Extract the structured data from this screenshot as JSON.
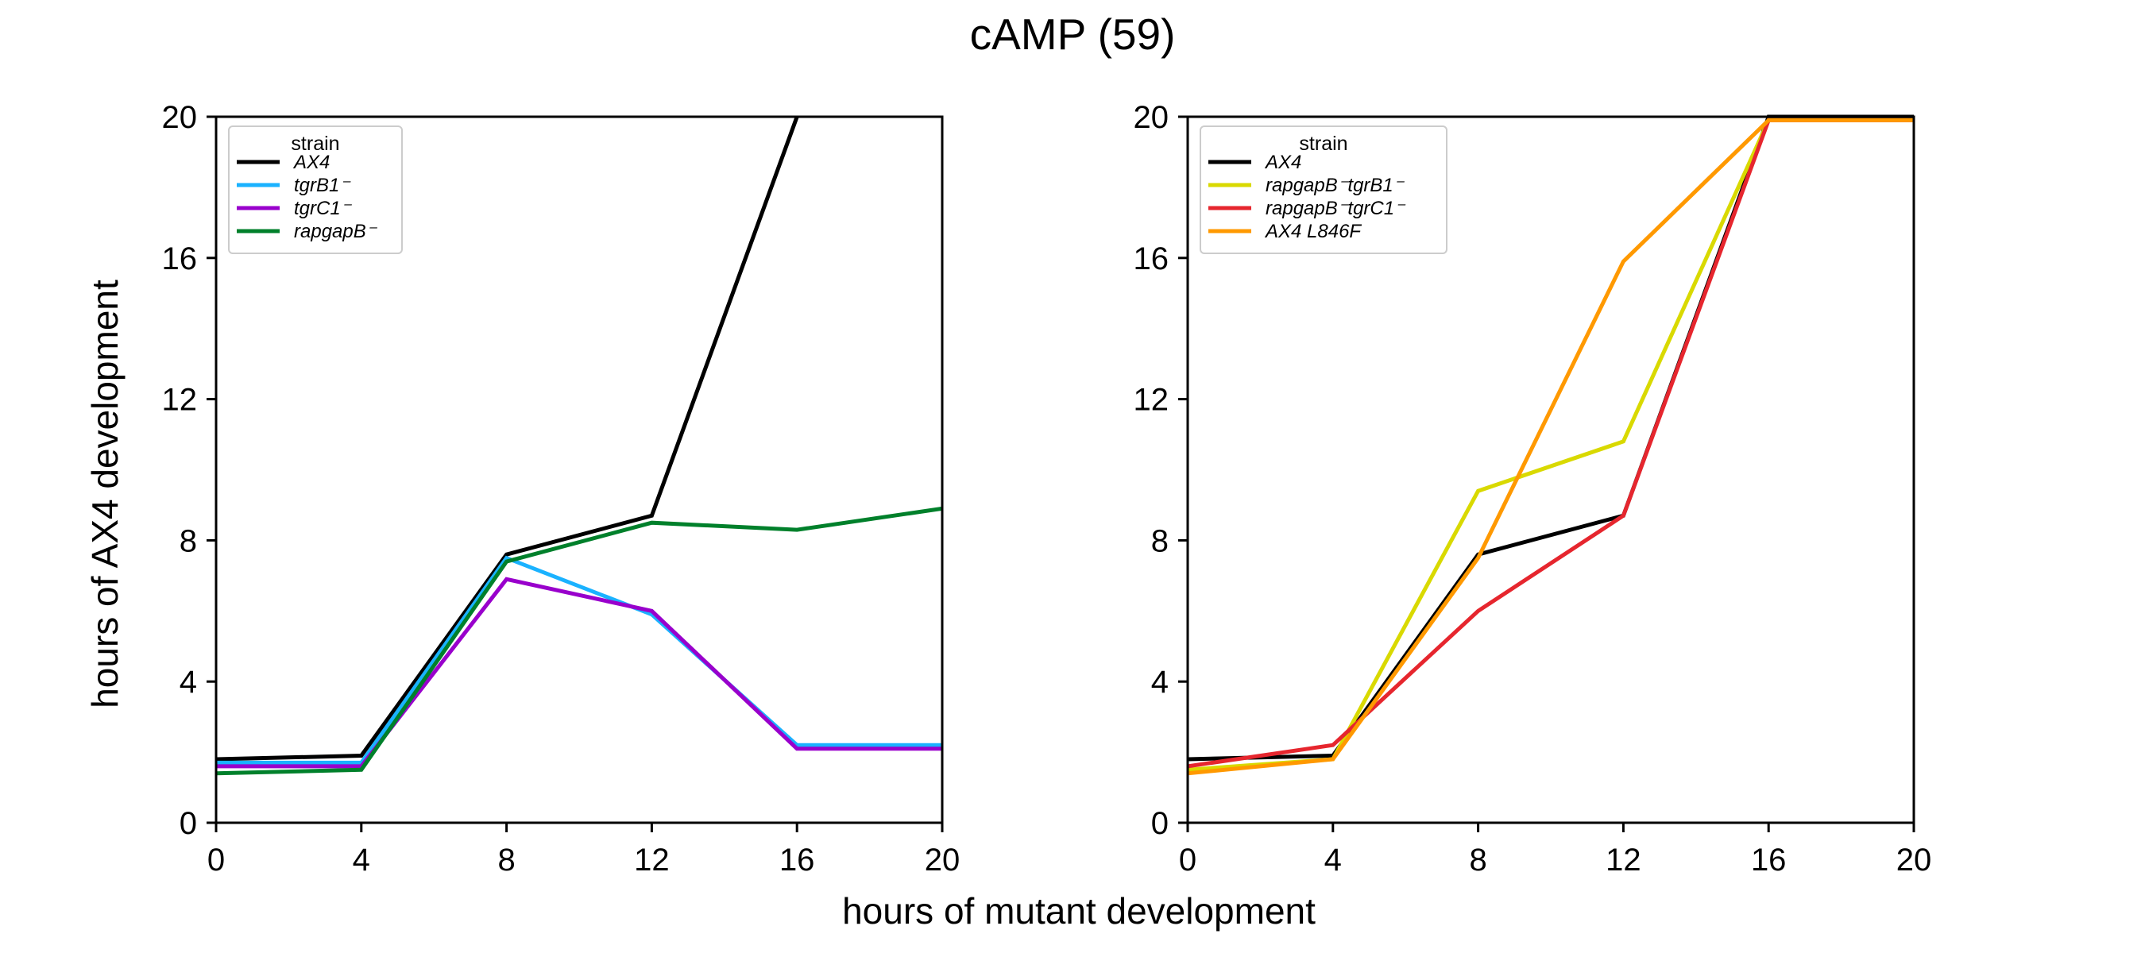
{
  "title": "cAMP (59)",
  "xlabel": "hours of mutant development",
  "ylabel": "hours of AX4 development",
  "chart_data": [
    {
      "type": "line",
      "x": [
        0,
        4,
        8,
        12,
        16,
        20
      ],
      "xlim": [
        0,
        20
      ],
      "ylim": [
        0,
        20
      ],
      "xticks": [
        "0",
        "4",
        "8",
        "12",
        "16",
        "20"
      ],
      "yticks": [
        "0",
        "4",
        "8",
        "12",
        "16",
        "20"
      ],
      "legend_title": "strain",
      "legend_position": "upper left",
      "series": [
        {
          "name": "AX4",
          "color": "#000000",
          "values": [
            1.8,
            1.9,
            7.6,
            8.7,
            20.0,
            null
          ]
        },
        {
          "name": "tgrB1⁻",
          "color": "#1ab2ff",
          "values": [
            1.7,
            1.7,
            7.5,
            5.9,
            2.2,
            2.2
          ]
        },
        {
          "name": "tgrC1⁻",
          "color": "#9900cc",
          "values": [
            1.6,
            1.6,
            6.9,
            6.0,
            2.1,
            2.1
          ]
        },
        {
          "name": "rapgapB⁻",
          "color": "#00802b",
          "values": [
            1.4,
            1.5,
            7.4,
            8.5,
            8.3,
            8.9
          ]
        }
      ]
    },
    {
      "type": "line",
      "x": [
        0,
        4,
        8,
        12,
        16,
        20
      ],
      "xlim": [
        0,
        20
      ],
      "ylim": [
        0,
        20
      ],
      "xticks": [
        "0",
        "4",
        "8",
        "12",
        "16",
        "20"
      ],
      "yticks": [
        "0",
        "4",
        "8",
        "12",
        "16",
        "20"
      ],
      "legend_title": "strain",
      "legend_position": "upper left",
      "series": [
        {
          "name": "AX4",
          "color": "#000000",
          "values": [
            1.8,
            1.9,
            7.6,
            8.7,
            20.0,
            20.0
          ]
        },
        {
          "name": "rapgapB⁻tgrB1⁻",
          "color": "#d9d900",
          "values": [
            1.5,
            1.8,
            9.4,
            10.8,
            19.9,
            19.9
          ]
        },
        {
          "name": "rapgapB⁻tgrC1⁻",
          "color": "#e6262e",
          "values": [
            1.6,
            2.2,
            6.0,
            8.7,
            19.9,
            19.9
          ]
        },
        {
          "name": "AX4 L846F",
          "color": "#ff9900",
          "values": [
            1.4,
            1.8,
            7.5,
            15.9,
            19.9,
            19.9
          ]
        }
      ]
    }
  ]
}
